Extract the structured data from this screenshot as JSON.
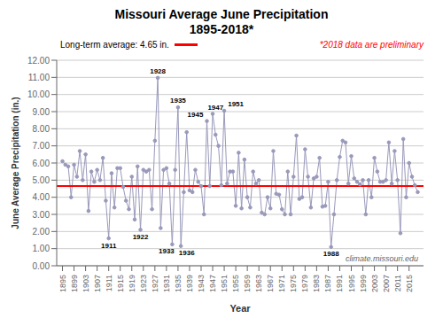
{
  "chart_data": {
    "type": "line",
    "title": "Missouri Average June Precipitation",
    "subtitle": "1895-2018*",
    "x_label": "Year",
    "y_label": "June Average Precipitation  (in.)",
    "x": [
      1895,
      1896,
      1897,
      1898,
      1899,
      1900,
      1901,
      1902,
      1903,
      1904,
      1905,
      1906,
      1907,
      1908,
      1909,
      1910,
      1911,
      1912,
      1913,
      1914,
      1915,
      1916,
      1917,
      1918,
      1919,
      1920,
      1921,
      1922,
      1923,
      1924,
      1925,
      1926,
      1927,
      1928,
      1929,
      1930,
      1931,
      1932,
      1933,
      1934,
      1935,
      1936,
      1937,
      1938,
      1939,
      1940,
      1941,
      1942,
      1943,
      1944,
      1945,
      1946,
      1947,
      1948,
      1949,
      1950,
      1951,
      1952,
      1953,
      1954,
      1955,
      1956,
      1957,
      1958,
      1959,
      1960,
      1961,
      1962,
      1963,
      1964,
      1965,
      1966,
      1967,
      1968,
      1969,
      1970,
      1971,
      1972,
      1973,
      1974,
      1975,
      1976,
      1977,
      1978,
      1979,
      1980,
      1981,
      1982,
      1983,
      1984,
      1985,
      1986,
      1987,
      1988,
      1989,
      1990,
      1991,
      1992,
      1993,
      1994,
      1995,
      1996,
      1997,
      1998,
      1999,
      2000,
      2001,
      2002,
      2003,
      2004,
      2005,
      2006,
      2007,
      2008,
      2009,
      2010,
      2011,
      2012,
      2013,
      2014,
      2015,
      2016,
      2017,
      2018
    ],
    "values": [
      6.1,
      5.9,
      5.8,
      4.0,
      5.9,
      5.2,
      6.7,
      5.0,
      6.5,
      3.2,
      5.5,
      4.9,
      5.6,
      5.0,
      6.3,
      3.8,
      1.6,
      5.4,
      3.4,
      5.7,
      5.7,
      4.6,
      3.8,
      3.3,
      5.2,
      2.7,
      5.8,
      2.1,
      5.6,
      5.5,
      5.6,
      3.3,
      7.3,
      10.97,
      2.2,
      5.6,
      5.7,
      4.8,
      1.25,
      5.6,
      9.25,
      1.15,
      4.3,
      7.8,
      4.4,
      4.3,
      5.6,
      4.9,
      4.65,
      3.0,
      8.45,
      4.65,
      8.87,
      7.65,
      7.0,
      4.7,
      9.05,
      4.8,
      5.5,
      5.5,
      3.5,
      6.6,
      3.35,
      6.2,
      4.0,
      3.4,
      5.5,
      4.8,
      5.0,
      3.1,
      3.0,
      4.0,
      3.35,
      6.7,
      4.2,
      4.15,
      3.3,
      3.0,
      5.5,
      3.0,
      5.2,
      7.6,
      3.9,
      4.0,
      6.8,
      5.2,
      3.4,
      5.1,
      5.2,
      6.3,
      3.45,
      3.5,
      4.9,
      1.1,
      3.0,
      5.0,
      6.35,
      7.3,
      7.2,
      4.8,
      6.4,
      5.1,
      4.9,
      4.75,
      5.0,
      3.0,
      5.0,
      4.0,
      6.3,
      5.5,
      4.9,
      4.9,
      5.0,
      7.2,
      4.8,
      6.7,
      5.0,
      1.9,
      7.4,
      4.0,
      6.0,
      5.2,
      4.7,
      4.3
    ],
    "color": "#9999BB",
    "marker": "circle",
    "xlim": [
      1893,
      2020
    ],
    "xticks": [
      1895,
      1899,
      1903,
      1907,
      1911,
      1915,
      1919,
      1923,
      1927,
      1931,
      1935,
      1939,
      1943,
      1947,
      1951,
      1955,
      1959,
      1963,
      1967,
      1971,
      1975,
      1979,
      1983,
      1987,
      1991,
      1995,
      1999,
      2003,
      2007,
      2011,
      2015
    ],
    "ylim": [
      0,
      12
    ],
    "yticks": [
      {
        "value": 0,
        "label": "0.00"
      },
      {
        "value": 1,
        "label": "1.00"
      },
      {
        "value": 2,
        "label": "2.00"
      },
      {
        "value": 3,
        "label": "3.00"
      },
      {
        "value": 4,
        "label": "4.00"
      },
      {
        "value": 5,
        "label": "5.00"
      },
      {
        "value": 6,
        "label": "6.00"
      },
      {
        "value": 7,
        "label": "7.00"
      },
      {
        "value": 8,
        "label": "8.00"
      },
      {
        "value": 9,
        "label": "9.00"
      },
      {
        "value": 10,
        "label": "10.00"
      },
      {
        "value": 11,
        "label": "11.00"
      },
      {
        "value": 12,
        "label": "12.00"
      }
    ],
    "grid": "y",
    "long_term_average": {
      "value": 4.65,
      "label": "Long-term average: 4.65 in.",
      "color": "#FF0000"
    },
    "disclaimer": {
      "text": "*2018 data are preliminary",
      "color": "red"
    },
    "source": "climate.missouri.edu",
    "annotations_high": [
      {
        "x": 1928,
        "y": 10.97,
        "text": "1928"
      },
      {
        "x": 1935,
        "y": 9.25,
        "text": "1935"
      },
      {
        "x": 1945,
        "y": 8.45,
        "text": "1945"
      },
      {
        "x": 1947,
        "y": 8.87,
        "text": "1947"
      },
      {
        "x": 1951,
        "y": 9.05,
        "text": "1951"
      }
    ],
    "annotations_low": [
      {
        "x": 1911,
        "y": 1.6,
        "text": "1911"
      },
      {
        "x": 1922,
        "y": 2.1,
        "text": "1922"
      },
      {
        "x": 1933,
        "y": 1.25,
        "text": "1933"
      },
      {
        "x": 1936,
        "y": 1.15,
        "text": "1936"
      },
      {
        "x": 1988,
        "y": 1.1,
        "text": "1988"
      }
    ]
  }
}
